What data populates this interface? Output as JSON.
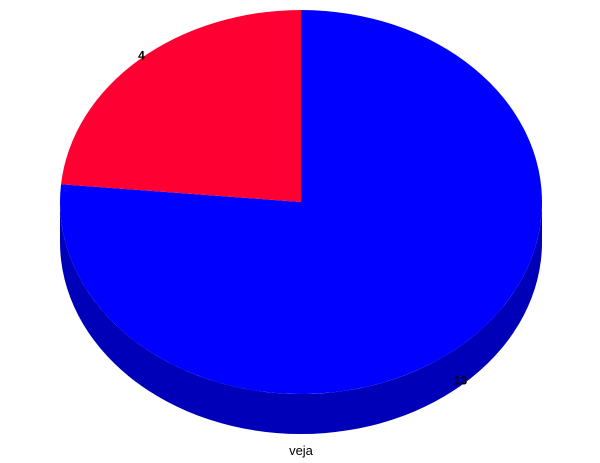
{
  "chart_data": {
    "type": "pie",
    "style": "3d",
    "xlabel": "veja",
    "legend": "none",
    "slices": [
      {
        "value": 13,
        "label": "13",
        "color": "#0000ff",
        "side_color": "#0000b8"
      },
      {
        "value": 4,
        "label": "4",
        "color": "#ff0033",
        "side_color": "#b80024"
      }
    ]
  }
}
